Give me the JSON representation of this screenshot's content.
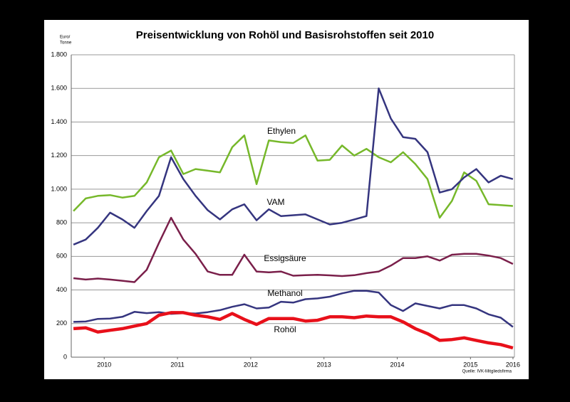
{
  "chart_data": {
    "type": "line",
    "title": "Preisentwicklung von Rohöl und Basisrohstoffen seit 2010",
    "y_label": [
      "Euro/",
      "Tonne"
    ],
    "source": "Quelle: IVK-Mitgliedsfirma",
    "x": [
      2010,
      2010.167,
      2010.333,
      2010.5,
      2010.667,
      2010.833,
      2011,
      2011.167,
      2011.333,
      2011.5,
      2011.667,
      2011.833,
      2012,
      2012.167,
      2012.333,
      2012.5,
      2012.667,
      2012.833,
      2013,
      2013.167,
      2013.333,
      2013.5,
      2013.667,
      2013.833,
      2014,
      2014.167,
      2014.333,
      2014.5,
      2014.667,
      2014.833,
      2015,
      2015.167,
      2015.333,
      2015.5,
      2015.667,
      2015.833,
      2016
    ],
    "xlim": [
      2009.97,
      2016.02
    ],
    "xticks": [
      {
        "value": 2010.42,
        "label": "2010"
      },
      {
        "value": 2011.42,
        "label": "2011"
      },
      {
        "value": 2012.42,
        "label": "2012"
      },
      {
        "value": 2013.42,
        "label": "2013"
      },
      {
        "value": 2014.42,
        "label": "2014"
      },
      {
        "value": 2015.42,
        "label": "2015"
      },
      {
        "value": 2016,
        "label": "2016"
      }
    ],
    "ylim": [
      0,
      1800
    ],
    "yticks": [
      0,
      200,
      400,
      600,
      800,
      {
        "value": 1000,
        "label": "1.000"
      },
      {
        "value": 1200,
        "label": "1.200"
      },
      {
        "value": 1400,
        "label": "1.400"
      },
      {
        "value": 1600,
        "label": "1.600"
      },
      {
        "value": 1800,
        "label": "1.800"
      }
    ],
    "grid": true,
    "series": [
      {
        "name": "Ethylen",
        "color": "#76b82a",
        "values": [
          870,
          945,
          960,
          965,
          950,
          960,
          1040,
          1190,
          1230,
          1090,
          1120,
          1110,
          1100,
          1250,
          1320,
          1030,
          1290,
          1280,
          1275,
          1320,
          1170,
          1175,
          1260,
          1200,
          1240,
          1190,
          1160,
          1220,
          1150,
          1060,
          830,
          930,
          1100,
          1050,
          910,
          905,
          900
        ]
      },
      {
        "name": "VAM",
        "color": "#35357f",
        "values": [
          670,
          700,
          770,
          860,
          820,
          770,
          870,
          960,
          1190,
          1060,
          960,
          875,
          820,
          880,
          910,
          815,
          880,
          840,
          845,
          850,
          820,
          790,
          800,
          820,
          840,
          1600,
          1420,
          1310,
          1300,
          1220,
          980,
          1000,
          1070,
          1120,
          1040,
          1080,
          1060
        ]
      },
      {
        "name": "Essigsäure",
        "color": "#7a1f4a",
        "values": [
          470,
          462,
          468,
          462,
          455,
          447,
          520,
          680,
          830,
          700,
          615,
          510,
          490,
          490,
          610,
          510,
          505,
          510,
          485,
          488,
          490,
          487,
          483,
          488,
          500,
          510,
          545,
          590,
          590,
          600,
          575,
          610,
          615,
          615,
          605,
          590,
          555
        ]
      },
      {
        "name": "Methanol",
        "color": "#35357f",
        "values": [
          210,
          212,
          228,
          230,
          240,
          270,
          262,
          268,
          258,
          262,
          260,
          268,
          280,
          300,
          315,
          290,
          295,
          330,
          325,
          345,
          350,
          360,
          380,
          395,
          395,
          385,
          310,
          275,
          320,
          305,
          290,
          310,
          310,
          290,
          255,
          235,
          180
        ]
      },
      {
        "name": "Rohöl",
        "color": "#e8101a",
        "values": [
          170,
          175,
          150,
          160,
          170,
          185,
          200,
          250,
          265,
          265,
          250,
          240,
          225,
          260,
          225,
          195,
          230,
          230,
          230,
          215,
          220,
          240,
          240,
          235,
          245,
          240,
          240,
          210,
          170,
          140,
          100,
          105,
          115,
          100,
          85,
          75,
          55
        ]
      }
    ]
  }
}
